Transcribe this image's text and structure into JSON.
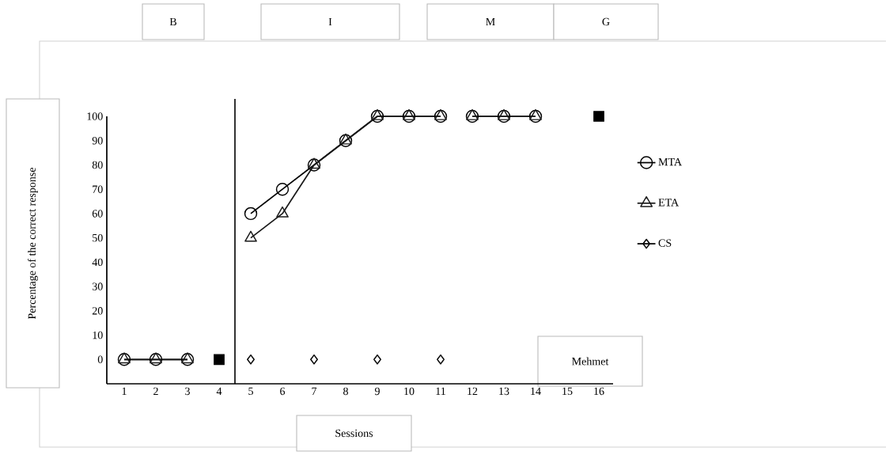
{
  "chart_data": {
    "type": "line",
    "xlabel": "Sessions",
    "ylabel": "Percentage of the correct response",
    "x": [
      1,
      2,
      3,
      4,
      5,
      6,
      7,
      8,
      9,
      10,
      11,
      12,
      13,
      14,
      15,
      16
    ],
    "xlim": [
      0.45,
      16.45
    ],
    "xticks": [
      1,
      2,
      3,
      4,
      5,
      6,
      7,
      8,
      9,
      10,
      11,
      12,
      13,
      14,
      15,
      16
    ],
    "ylim": [
      -10,
      100
    ],
    "yticks": [
      0,
      10,
      20,
      30,
      40,
      50,
      60,
      70,
      80,
      90,
      100
    ],
    "series": [
      {
        "name": "MTA",
        "color": "#000000",
        "marker": "circle",
        "values": [
          0,
          0,
          0,
          null,
          60,
          70,
          80,
          90,
          100,
          100,
          100,
          null,
          null,
          null,
          null,
          null
        ]
      },
      {
        "name": "ETA",
        "color": "#1a1a1a",
        "marker": "triangle",
        "values": [
          0,
          0,
          0,
          null,
          50,
          60,
          80,
          90,
          100,
          100,
          100,
          null,
          null,
          null,
          null,
          null
        ]
      },
      {
        "name": "CS",
        "color": "#000000",
        "marker": "diamond",
        "values": [
          null,
          null,
          null,
          null,
          0,
          null,
          0,
          null,
          0,
          null,
          0,
          null,
          null,
          null,
          null,
          null
        ]
      },
      {
        "color": "#000000",
        "marker": "circle",
        "values": [
          null,
          null,
          null,
          null,
          null,
          null,
          null,
          null,
          null,
          null,
          null,
          100,
          100,
          100,
          null,
          null
        ]
      },
      {
        "color": "#1a1a1a",
        "marker": "triangle",
        "values": [
          null,
          null,
          null,
          null,
          null,
          null,
          null,
          null,
          null,
          null,
          null,
          100,
          100,
          100,
          null,
          null
        ]
      },
      {
        "type": "scatter",
        "color": "#000000",
        "marker": "square",
        "values": [
          null,
          null,
          null,
          0,
          null,
          null,
          null,
          null,
          null,
          null,
          null,
          null,
          null,
          null,
          null,
          100
        ]
      }
    ],
    "ref_lines": [
      {
        "axis": "x",
        "value": 4.5,
        "color": "#000000"
      }
    ],
    "annotations": [
      "B",
      "I",
      "M",
      "G",
      "Mehmet"
    ],
    "legend": "right",
    "grid": false,
    "line_style": "solid"
  }
}
